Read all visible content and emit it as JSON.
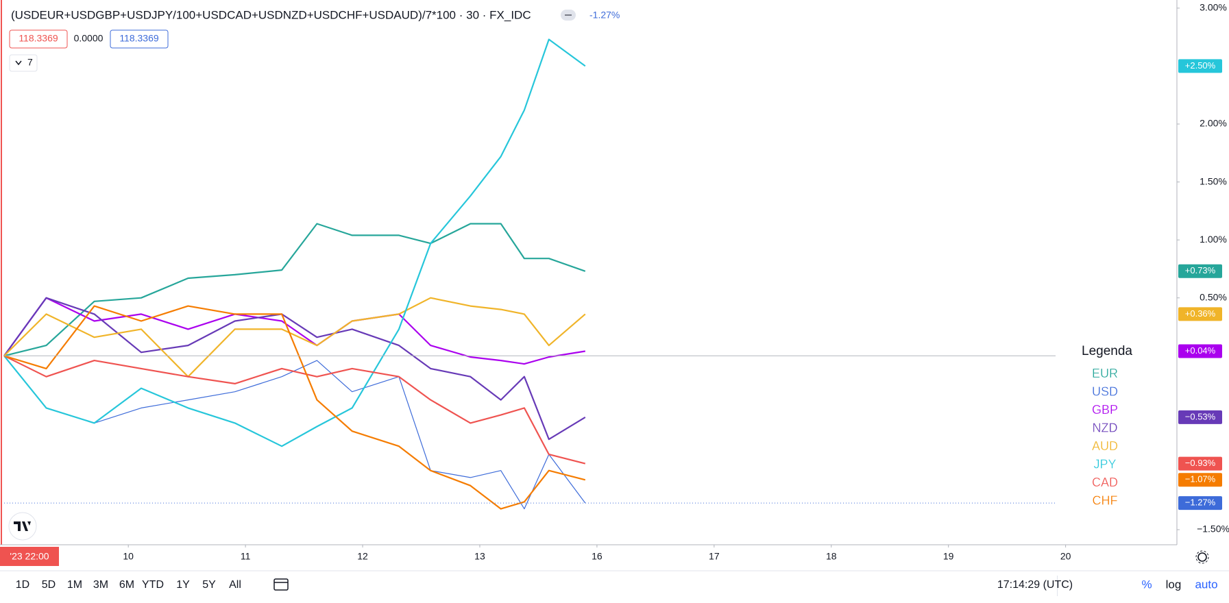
{
  "chart_data": {
    "type": "line",
    "title": "(USDEUR+USDGBP+USDJPY/100+USDCAD+USDNZD+USDCHF+USDAUD)/7*100 · 30 · FX_IDC",
    "change": "-1.27%",
    "quotes": [
      "118.3369",
      "0.0000",
      "118.3369"
    ],
    "indicators": "7",
    "legend_title": "Legenda",
    "x": [
      -1.06,
      -0.7,
      -0.29,
      0.11,
      0.51,
      0.91,
      1.31,
      1.61,
      1.91,
      2.31,
      2.58,
      2.92,
      3.18,
      3.38,
      3.59,
      3.9
    ],
    "xlim": [
      -1.06,
      8.95
    ],
    "xticks": [
      {
        "value": -1.06,
        "label": "'23  22:00"
      },
      {
        "value": 0,
        "label": "10"
      },
      {
        "value": 1,
        "label": "11"
      },
      {
        "value": 2,
        "label": "12"
      },
      {
        "value": 3,
        "label": "13"
      },
      {
        "value": 4,
        "label": "16"
      },
      {
        "value": 5,
        "label": "17"
      },
      {
        "value": 6,
        "label": "18"
      },
      {
        "value": 7,
        "label": "19"
      },
      {
        "value": 8,
        "label": "20"
      }
    ],
    "ylim": [
      -1.63,
      3.07
    ],
    "yticks": [
      {
        "value": -1.5,
        "label": "−1.50%"
      },
      {
        "value": 0.5,
        "label": "0.50%"
      },
      {
        "value": 1.0,
        "label": "1.00%"
      },
      {
        "value": 1.5,
        "label": "1.50%"
      },
      {
        "value": 2.0,
        "label": "2.00%"
      },
      {
        "value": 3.0,
        "label": "3.00%"
      }
    ],
    "series": [
      {
        "name": "EUR",
        "color": "#26a69a",
        "values": [
          0,
          0.09,
          0.47,
          0.5,
          0.67,
          0.7,
          0.74,
          1.14,
          1.04,
          1.04,
          0.97,
          1.14,
          1.14,
          0.84,
          0.84,
          0.73
        ],
        "value_labels": [
          null,
          null,
          null,
          null,
          null,
          null,
          null,
          null,
          null,
          null,
          null,
          null,
          null,
          null,
          null,
          "+0.73%"
        ]
      },
      {
        "name": "USD",
        "color": "#3d6bd9",
        "values": [
          0,
          -0.45,
          -0.58,
          -0.45,
          -0.38,
          -0.31,
          -0.18,
          -0.04,
          -0.31,
          -0.18,
          -0.99,
          -1.05,
          -0.99,
          -1.32,
          -0.85,
          -1.27
        ],
        "value_labels": [
          null,
          null,
          null,
          null,
          null,
          null,
          null,
          null,
          null,
          null,
          null,
          null,
          null,
          null,
          null,
          "−1.27%"
        ]
      },
      {
        "name": "GBP",
        "color": "#aa00ee",
        "values": [
          0,
          0.5,
          0.3,
          0.36,
          0.23,
          0.36,
          0.3,
          0.09,
          0.3,
          0.36,
          0.09,
          -0.01,
          -0.04,
          -0.07,
          -0.01,
          0.04
        ],
        "value_labels": [
          null,
          null,
          null,
          null,
          null,
          null,
          null,
          null,
          null,
          null,
          null,
          null,
          null,
          null,
          null,
          "+0.04%"
        ]
      },
      {
        "name": "NZD",
        "color": "#673ab7",
        "values": [
          0,
          0.5,
          0.36,
          0.03,
          0.09,
          0.3,
          0.36,
          0.16,
          0.23,
          0.09,
          -0.11,
          -0.18,
          -0.38,
          -0.18,
          -0.72,
          -0.53
        ],
        "value_labels": [
          null,
          null,
          null,
          null,
          null,
          null,
          null,
          null,
          null,
          null,
          null,
          null,
          null,
          null,
          null,
          "−0.53%"
        ]
      },
      {
        "name": "AUD",
        "color": "#f0b429",
        "values": [
          0,
          0.36,
          0.16,
          0.23,
          -0.18,
          0.23,
          0.23,
          0.09,
          0.3,
          0.36,
          0.5,
          0.43,
          0.4,
          0.36,
          0.09,
          0.36
        ],
        "value_labels": [
          null,
          null,
          null,
          null,
          null,
          null,
          null,
          null,
          null,
          null,
          null,
          null,
          null,
          null,
          null,
          "+0.36%"
        ]
      },
      {
        "name": "JPY",
        "color": "#26c6da",
        "values": [
          0,
          -0.45,
          -0.58,
          -0.28,
          -0.45,
          -0.58,
          -0.78,
          -0.61,
          -0.45,
          0.23,
          0.97,
          1.38,
          1.72,
          2.12,
          2.73,
          2.5
        ],
        "value_labels": [
          null,
          null,
          null,
          null,
          null,
          null,
          null,
          null,
          null,
          null,
          null,
          null,
          null,
          null,
          null,
          "+2.50%"
        ]
      },
      {
        "name": "CAD",
        "color": "#ef5350",
        "values": [
          0,
          -0.18,
          -0.04,
          -0.11,
          -0.18,
          -0.24,
          -0.11,
          -0.18,
          -0.11,
          -0.18,
          -0.38,
          -0.58,
          -0.51,
          -0.45,
          -0.85,
          -0.93
        ],
        "value_labels": [
          null,
          null,
          null,
          null,
          null,
          null,
          null,
          null,
          null,
          null,
          null,
          null,
          null,
          null,
          null,
          "−0.93%"
        ]
      },
      {
        "name": "CHF",
        "color": "#f57c00",
        "values": [
          0,
          -0.11,
          0.43,
          0.3,
          0.43,
          0.36,
          0.36,
          -0.38,
          -0.65,
          -0.78,
          -0.99,
          -1.12,
          -1.32,
          -1.26,
          -0.99,
          -1.07
        ],
        "value_labels": [
          null,
          null,
          null,
          null,
          null,
          null,
          null,
          null,
          null,
          null,
          null,
          null,
          null,
          null,
          null,
          "−1.07%"
        ]
      }
    ]
  },
  "toolbar": {
    "ranges": [
      "1D",
      "5D",
      "1M",
      "3M",
      "6M",
      "YTD",
      "1Y",
      "5Y",
      "All"
    ],
    "time": "17:14:29 (UTC)",
    "percent": "%",
    "log": "log",
    "auto": "auto"
  }
}
